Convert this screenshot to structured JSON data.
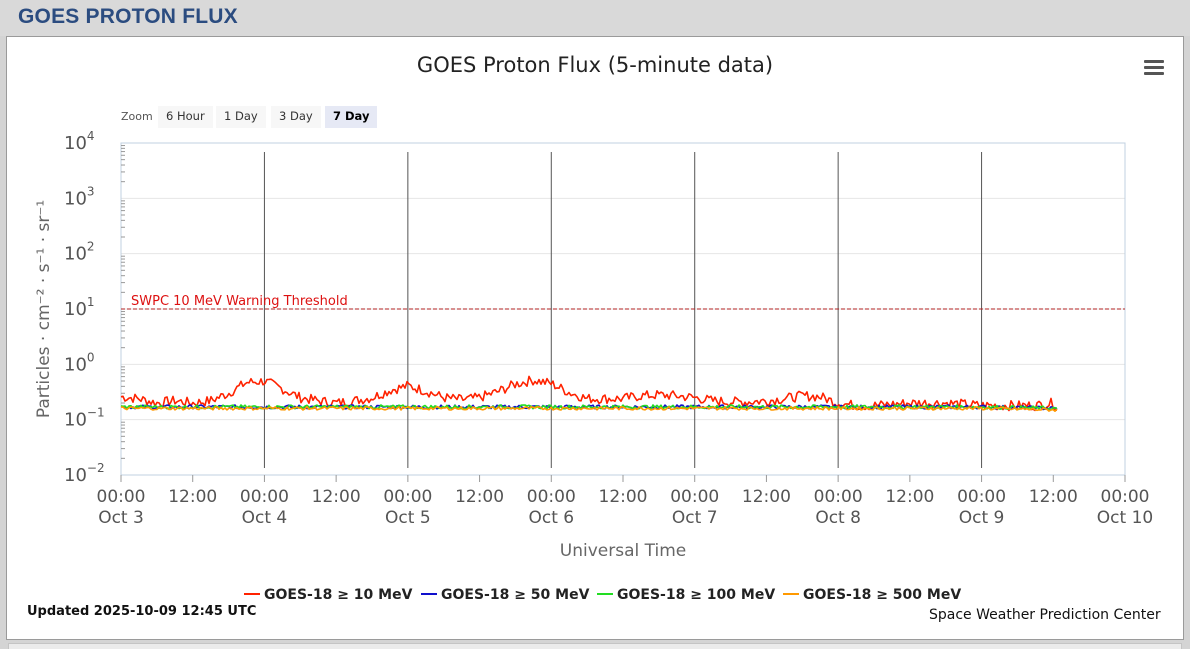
{
  "page": {
    "title": "GOES PROTON FLUX"
  },
  "chart_data": {
    "type": "line",
    "title": "GOES Proton Flux (5-minute data)",
    "xlabel": "Universal Time",
    "ylabel": "Particles · cm⁻² · s⁻¹ · sr⁻¹",
    "yscale": "log",
    "ylim": [
      0.01,
      10000
    ],
    "y_ticks": [
      {
        "value": 10000,
        "base": "10",
        "exp": "4"
      },
      {
        "value": 1000,
        "base": "10",
        "exp": "3"
      },
      {
        "value": 100,
        "base": "10",
        "exp": "2"
      },
      {
        "value": 10,
        "base": "10",
        "exp": "1"
      },
      {
        "value": 1,
        "base": "10",
        "exp": "0"
      },
      {
        "value": 0.1,
        "base": "10",
        "exp": "−1"
      },
      {
        "value": 0.01,
        "base": "10",
        "exp": "−2"
      }
    ],
    "xlim": [
      "2025-10-03 00:00",
      "2025-10-10 00:00"
    ],
    "x_ticks": [
      {
        "time": "2025-10-03 00:00",
        "l1": "00:00",
        "l2": "Oct 3"
      },
      {
        "time": "2025-10-03 12:00",
        "l1": "12:00",
        "l2": ""
      },
      {
        "time": "2025-10-04 00:00",
        "l1": "00:00",
        "l2": "Oct 4"
      },
      {
        "time": "2025-10-04 12:00",
        "l1": "12:00",
        "l2": ""
      },
      {
        "time": "2025-10-05 00:00",
        "l1": "00:00",
        "l2": "Oct 5"
      },
      {
        "time": "2025-10-05 12:00",
        "l1": "12:00",
        "l2": ""
      },
      {
        "time": "2025-10-06 00:00",
        "l1": "00:00",
        "l2": "Oct 6"
      },
      {
        "time": "2025-10-06 12:00",
        "l1": "12:00",
        "l2": ""
      },
      {
        "time": "2025-10-07 00:00",
        "l1": "00:00",
        "l2": "Oct 7"
      },
      {
        "time": "2025-10-07 12:00",
        "l1": "12:00",
        "l2": ""
      },
      {
        "time": "2025-10-08 00:00",
        "l1": "00:00",
        "l2": "Oct 8"
      },
      {
        "time": "2025-10-08 12:00",
        "l1": "12:00",
        "l2": ""
      },
      {
        "time": "2025-10-09 00:00",
        "l1": "00:00",
        "l2": "Oct 9"
      },
      {
        "time": "2025-10-09 12:00",
        "l1": "12:00",
        "l2": ""
      },
      {
        "time": "2025-10-10 00:00",
        "l1": "00:00",
        "l2": "Oct 10"
      }
    ],
    "day_lines": [
      "2025-10-04 00:00",
      "2025-10-05 00:00",
      "2025-10-06 00:00",
      "2025-10-07 00:00",
      "2025-10-08 00:00",
      "2025-10-09 00:00"
    ],
    "threshold": {
      "label": "SWPC 10 MeV Warning Threshold",
      "value": 10,
      "color": "#b22222"
    },
    "series": [
      {
        "name": "GOES-18 ≥ 10 MeV",
        "color": "#ff2200",
        "points": [
          [
            "2025-10-03 00:00",
            0.26
          ],
          [
            "2025-10-03 03:00",
            0.24
          ],
          [
            "2025-10-03 06:00",
            0.2
          ],
          [
            "2025-10-03 09:00",
            0.22
          ],
          [
            "2025-10-03 12:00",
            0.2
          ],
          [
            "2025-10-03 15:00",
            0.22
          ],
          [
            "2025-10-03 18:00",
            0.3
          ],
          [
            "2025-10-03 21:00",
            0.47
          ],
          [
            "2025-10-04 00:00",
            0.5
          ],
          [
            "2025-10-04 03:00",
            0.36
          ],
          [
            "2025-10-04 06:00",
            0.25
          ],
          [
            "2025-10-04 09:00",
            0.22
          ],
          [
            "2025-10-04 12:00",
            0.2
          ],
          [
            "2025-10-04 15:00",
            0.22
          ],
          [
            "2025-10-04 18:00",
            0.25
          ],
          [
            "2025-10-04 21:00",
            0.34
          ],
          [
            "2025-10-05 00:00",
            0.41
          ],
          [
            "2025-10-05 03:00",
            0.33
          ],
          [
            "2025-10-05 06:00",
            0.25
          ],
          [
            "2025-10-05 09:00",
            0.23
          ],
          [
            "2025-10-05 12:00",
            0.25
          ],
          [
            "2025-10-05 15:00",
            0.32
          ],
          [
            "2025-10-05 18:00",
            0.44
          ],
          [
            "2025-10-05 21:00",
            0.52
          ],
          [
            "2025-10-06 00:00",
            0.45
          ],
          [
            "2025-10-06 03:00",
            0.31
          ],
          [
            "2025-10-06 06:00",
            0.24
          ],
          [
            "2025-10-06 09:00",
            0.24
          ],
          [
            "2025-10-06 12:00",
            0.24
          ],
          [
            "2025-10-06 15:00",
            0.27
          ],
          [
            "2025-10-06 18:00",
            0.28
          ],
          [
            "2025-10-06 21:00",
            0.27
          ],
          [
            "2025-10-07 00:00",
            0.25
          ],
          [
            "2025-10-07 03:00",
            0.22
          ],
          [
            "2025-10-07 06:00",
            0.21
          ],
          [
            "2025-10-07 09:00",
            0.21
          ],
          [
            "2025-10-07 12:00",
            0.22
          ],
          [
            "2025-10-07 15:00",
            0.24
          ],
          [
            "2025-10-07 18:00",
            0.27
          ],
          [
            "2025-10-07 21:00",
            0.26
          ],
          [
            "2025-10-08 00:00",
            0.2
          ],
          [
            "2025-10-08 03:00",
            0.18
          ],
          [
            "2025-10-08 06:00",
            0.18
          ],
          [
            "2025-10-08 09:00",
            0.19
          ],
          [
            "2025-10-08 12:00",
            0.2
          ],
          [
            "2025-10-08 15:00",
            0.2
          ],
          [
            "2025-10-08 18:00",
            0.2
          ],
          [
            "2025-10-08 21:00",
            0.19
          ],
          [
            "2025-10-09 00:00",
            0.18
          ],
          [
            "2025-10-09 03:00",
            0.18
          ],
          [
            "2025-10-09 06:00",
            0.18
          ],
          [
            "2025-10-09 09:00",
            0.18
          ],
          [
            "2025-10-09 12:00",
            0.2
          ],
          [
            "2025-10-09 12:45",
            0.16
          ]
        ]
      },
      {
        "name": "GOES-18 ≥ 50 MeV",
        "color": "#1010cc",
        "points": [
          [
            "2025-10-03 00:00",
            0.17
          ],
          [
            "2025-10-04 00:00",
            0.17
          ],
          [
            "2025-10-05 00:00",
            0.17
          ],
          [
            "2025-10-06 00:00",
            0.17
          ],
          [
            "2025-10-07 00:00",
            0.17
          ],
          [
            "2025-10-08 00:00",
            0.17
          ],
          [
            "2025-10-09 00:00",
            0.17
          ],
          [
            "2025-10-09 12:45",
            0.16
          ]
        ]
      },
      {
        "name": "GOES-18 ≥ 100 MeV",
        "color": "#22dd22",
        "points": [
          [
            "2025-10-03 00:00",
            0.17
          ],
          [
            "2025-10-04 00:00",
            0.17
          ],
          [
            "2025-10-05 00:00",
            0.17
          ],
          [
            "2025-10-06 00:00",
            0.17
          ],
          [
            "2025-10-07 00:00",
            0.17
          ],
          [
            "2025-10-08 00:00",
            0.17
          ],
          [
            "2025-10-09 00:00",
            0.17
          ],
          [
            "2025-10-09 12:45",
            0.16
          ]
        ]
      },
      {
        "name": "GOES-18 ≥ 500 MeV",
        "color": "#ff9900",
        "points": [
          [
            "2025-10-03 00:00",
            0.16
          ],
          [
            "2025-10-04 00:00",
            0.16
          ],
          [
            "2025-10-05 00:00",
            0.16
          ],
          [
            "2025-10-06 00:00",
            0.16
          ],
          [
            "2025-10-07 00:00",
            0.16
          ],
          [
            "2025-10-08 00:00",
            0.16
          ],
          [
            "2025-10-09 00:00",
            0.16
          ],
          [
            "2025-10-09 12:45",
            0.15
          ]
        ]
      }
    ],
    "legend_position": "bottom"
  },
  "zoom": {
    "label": "Zoom",
    "buttons": [
      {
        "label": "6 Hour",
        "active": false
      },
      {
        "label": "1 Day",
        "active": false
      },
      {
        "label": "3 Day",
        "active": false
      },
      {
        "label": "7 Day",
        "active": true
      }
    ]
  },
  "footer": {
    "updated": "Updated 2025-10-09 12:45 UTC",
    "credit": "Space Weather Prediction Center"
  }
}
